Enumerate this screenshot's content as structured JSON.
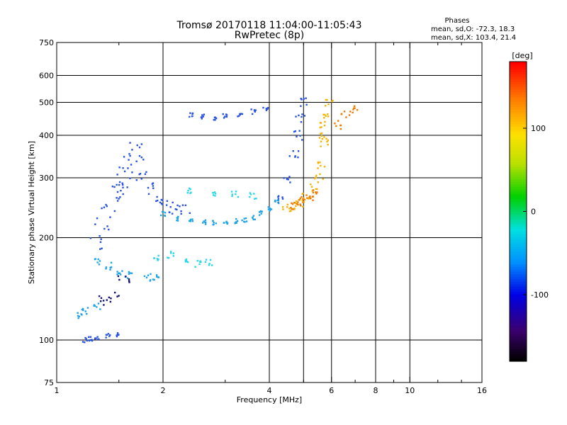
{
  "chart_data": {
    "type": "scatter",
    "title": "Tromsø 20170118 11:04:00-11:05:43",
    "subtitle": "RwPretec (8p)",
    "xlabel": "Frequency [MHz]",
    "ylabel": "Stationary phase Virtual Height [km]",
    "x_scale": "log",
    "y_scale": "log",
    "xlim": [
      1,
      16
    ],
    "ylim": [
      75,
      750
    ],
    "x_ticks": [
      1,
      2,
      4,
      6,
      8,
      10,
      16
    ],
    "x_tick_labels": [
      "1",
      "2",
      "4",
      "6",
      "8",
      "10",
      "16"
    ],
    "x_minor_ticks": [
      1.5,
      3,
      5,
      7,
      9,
      12,
      14
    ],
    "y_ticks": [
      75,
      100,
      200,
      300,
      400,
      500,
      600,
      750
    ],
    "y_tick_labels": [
      "75",
      "100",
      "200",
      "300",
      "400",
      "500",
      "600",
      "750"
    ],
    "grid": true,
    "grid_x": [
      2,
      4,
      5,
      6,
      8,
      10
    ],
    "grid_y": [
      100,
      200,
      300,
      400,
      500,
      600
    ],
    "stats_header": "Phases",
    "stats_lines": [
      "mean, sd,O: -72.3, 18.3",
      "mean, sd,X: 103.4, 21.4"
    ],
    "colorbar": {
      "label": "[deg]",
      "range": [
        -180,
        180
      ],
      "ticks": [
        100,
        0,
        -100
      ],
      "tick_labels": [
        "100",
        "0",
        "-100"
      ]
    },
    "series": [
      {
        "phase": -85,
        "color": "#2a52e0",
        "traces": [
          {
            "x": [
              1.3,
              1.35,
              1.4,
              1.45,
              1.5,
              1.55,
              1.6,
              1.65,
              1.7
            ],
            "y": [
              190,
              220,
              250,
              270,
              290,
              300,
              320,
              340,
              360
            ],
            "jitter": 0.08,
            "n": 9
          },
          {
            "x": [
              1.75,
              1.85,
              1.95,
              2.05,
              2.15,
              2.3
            ],
            "y": [
              300,
              280,
              260,
              250,
              245,
              240
            ],
            "jitter": 0.05,
            "n": 6
          },
          {
            "x": [
              4.3,
              4.5,
              4.7,
              4.8,
              4.9,
              5.0
            ],
            "y": [
              260,
              300,
              350,
              400,
              450,
              500
            ],
            "jitter": 0.04,
            "n": 6
          },
          {
            "x": [
              2.4,
              2.6,
              2.8,
              3.0,
              3.3,
              3.6,
              3.9
            ],
            "y": [
              460,
              455,
              450,
              455,
              460,
              470,
              480
            ],
            "jitter": 0.02,
            "n": 7
          },
          {
            "x": [
              1.2,
              1.25,
              1.3,
              1.4,
              1.5
            ],
            "y": [
              100,
              101,
              102,
              103,
              104
            ],
            "jitter": 0.02,
            "n": 5
          }
        ]
      },
      {
        "phase": -60,
        "color": "#1ea4e6",
        "traces": [
          {
            "x": [
              2.0,
              2.2,
              2.4,
              2.6,
              2.8,
              3.0,
              3.2,
              3.4,
              3.6,
              3.8,
              4.0,
              4.2
            ],
            "y": [
              235,
              228,
              224,
              222,
              222,
              222,
              224,
              226,
              230,
              236,
              244,
              255
            ],
            "jitter": 0.02,
            "n": 12
          },
          {
            "x": [
              1.3,
              1.4,
              1.5,
              1.6,
              1.8,
              1.9
            ],
            "y": [
              170,
              165,
              158,
              155,
              153,
              152
            ],
            "jitter": 0.03,
            "n": 6
          },
          {
            "x": [
              1.15,
              1.2,
              1.3
            ],
            "y": [
              118,
              122,
              126
            ],
            "jitter": 0.03,
            "n": 3
          }
        ]
      },
      {
        "phase": -35,
        "color": "#28d8e8",
        "traces": [
          {
            "x": [
              1.9,
              2.1,
              2.3,
              2.5,
              2.7
            ],
            "y": [
              175,
              178,
              172,
              168,
              170
            ],
            "jitter": 0.03,
            "n": 5
          },
          {
            "x": [
              2.4,
              2.8,
              3.2,
              3.6
            ],
            "y": [
              275,
              270,
              268,
              266
            ],
            "jitter": 0.03,
            "n": 4
          }
        ]
      },
      {
        "phase": 100,
        "color": "#f2b400",
        "traces": [
          {
            "x": [
              4.5,
              4.7,
              4.9,
              5.1,
              5.3,
              5.5,
              5.6,
              5.7
            ],
            "y": [
              245,
              250,
              255,
              265,
              280,
              300,
              330,
              380
            ],
            "jitter": 0.04,
            "n": 8
          },
          {
            "x": [
              5.6,
              5.7,
              5.8,
              5.9
            ],
            "y": [
              400,
              430,
              460,
              500
            ],
            "jitter": 0.03,
            "n": 4
          }
        ]
      },
      {
        "phase": 130,
        "color": "#f07a00",
        "traces": [
          {
            "x": [
              4.6,
              4.8,
              5.0,
              5.2,
              5.4
            ],
            "y": [
              248,
              253,
              258,
              263,
              270
            ],
            "jitter": 0.03,
            "n": 5
          },
          {
            "x": [
              6.3,
              6.6,
              6.9
            ],
            "y": [
              430,
              460,
              480
            ],
            "jitter": 0.04,
            "n": 3
          }
        ]
      },
      {
        "phase": -130,
        "color": "#101078",
        "traces": [
          {
            "x": [
              1.35,
              1.45,
              1.55
            ],
            "y": [
              130,
              135,
              150
            ],
            "jitter": 0.05,
            "n": 3
          }
        ]
      }
    ]
  }
}
